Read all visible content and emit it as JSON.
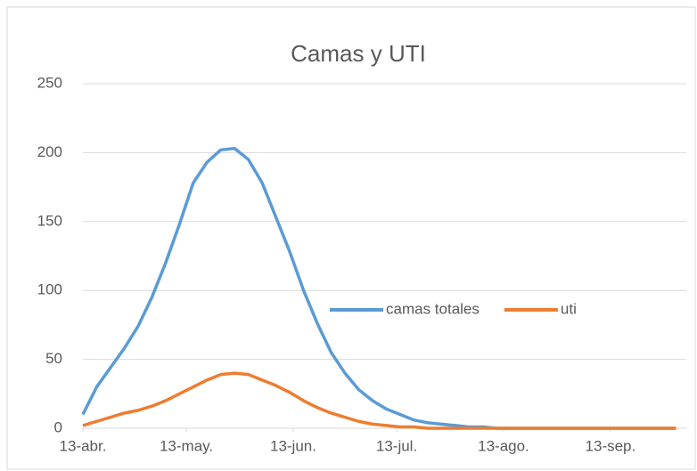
{
  "chart_data": {
    "type": "line",
    "title": "Camas y UTI",
    "x": [
      0,
      4,
      8,
      12,
      16,
      20,
      24,
      28,
      32,
      36,
      40,
      44,
      48,
      52,
      56,
      60,
      64,
      68,
      72,
      76,
      80,
      84,
      88,
      92,
      96,
      100,
      104,
      108,
      112,
      116,
      120,
      124,
      128,
      132,
      136,
      140,
      144,
      148,
      152,
      156,
      160,
      164,
      168,
      172
    ],
    "series": [
      {
        "name": "camas totales",
        "color": "#5b9bd5",
        "values": [
          10,
          30,
          44,
          58,
          74,
          95,
          120,
          148,
          178,
          193,
          202,
          203,
          195,
          178,
          153,
          128,
          100,
          76,
          55,
          40,
          28,
          20,
          14,
          10,
          6,
          4,
          3,
          2,
          1,
          1,
          0,
          0,
          0,
          0,
          0,
          0,
          0,
          0,
          0,
          0,
          0,
          0,
          0,
          0
        ]
      },
      {
        "name": "uti",
        "color": "#ed7d31",
        "values": [
          2,
          5,
          8,
          11,
          13,
          16,
          20,
          25,
          30,
          35,
          39,
          40,
          39,
          35,
          31,
          26,
          20,
          15,
          11,
          8,
          5,
          3,
          2,
          1,
          1,
          0,
          0,
          0,
          0,
          0,
          0,
          0,
          0,
          0,
          0,
          0,
          0,
          0,
          0,
          0,
          0,
          0,
          0,
          0
        ]
      }
    ],
    "xlim": [
      0,
      175
    ],
    "xticks": [
      {
        "value": 0,
        "label": "13-abr."
      },
      {
        "value": 30,
        "label": "13-may."
      },
      {
        "value": 61,
        "label": "13-jun."
      },
      {
        "value": 91,
        "label": "13-jul."
      },
      {
        "value": 122,
        "label": "13-ago."
      },
      {
        "value": 153,
        "label": "13-sep."
      }
    ],
    "ylim": [
      0,
      250
    ],
    "yticks": [
      0,
      50,
      100,
      150,
      200,
      250
    ],
    "grid": true,
    "legend": "right"
  }
}
